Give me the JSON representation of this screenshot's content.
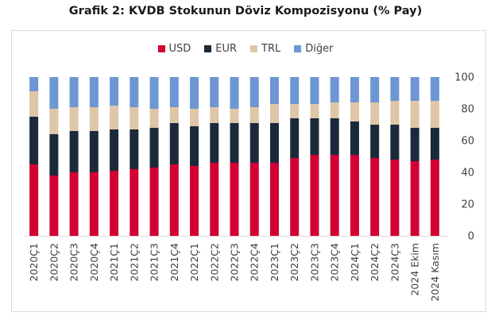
{
  "chart_data": {
    "type": "bar",
    "stacked": true,
    "title": "Grafik 2: KVDB Stokunun Döviz Kompozisyonu (% Pay)",
    "xlabel": "",
    "ylabel": "",
    "ylim": [
      0,
      100
    ],
    "yticks": [
      "0",
      "20",
      "40",
      "60",
      "80",
      "100"
    ],
    "y_axis_side": "right",
    "legend_position": "top",
    "grid": false,
    "categories": [
      "2020Ç1",
      "2020Ç2",
      "2020Ç3",
      "2020Ç4",
      "2021Ç1",
      "2021Ç2",
      "2021Ç3",
      "2021Ç4",
      "2022Ç1",
      "2022Ç2",
      "2022Ç3",
      "2022Ç4",
      "2023Ç1",
      "2023Ç2",
      "2023Ç3",
      "2023Ç4",
      "2024Ç1",
      "2024Ç2",
      "2024Ç3",
      "2024 Ekim",
      "2024 Kasım"
    ],
    "series": [
      {
        "name": "USD",
        "color": "#d20033",
        "values": [
          45,
          38,
          40,
          40,
          41,
          42,
          43,
          45,
          44,
          46,
          46,
          46,
          46,
          49,
          51,
          51,
          51,
          49,
          48,
          47,
          48
        ]
      },
      {
        "name": "EUR",
        "color": "#1b2a3a",
        "values": [
          30,
          26,
          26,
          26,
          26,
          25,
          25,
          26,
          25,
          25,
          25,
          25,
          25,
          25,
          23,
          23,
          21,
          21,
          22,
          21,
          20
        ]
      },
      {
        "name": "TRL",
        "color": "#dfc6a6",
        "values": [
          16,
          16,
          15,
          15,
          15,
          14,
          12,
          10,
          11,
          10,
          9,
          10,
          12,
          9,
          9,
          10,
          12,
          14,
          15,
          17,
          17
        ]
      },
      {
        "name": "Diğer",
        "color": "#6e96d4",
        "values": [
          9,
          20,
          19,
          19,
          18,
          19,
          20,
          19,
          20,
          19,
          20,
          19,
          17,
          17,
          17,
          16,
          16,
          16,
          15,
          15,
          15
        ]
      }
    ]
  }
}
